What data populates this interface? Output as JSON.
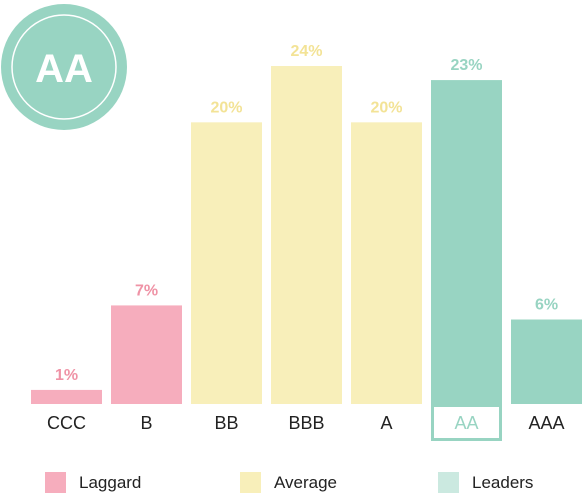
{
  "badge": {
    "text": "AA",
    "color": "#98d4c2"
  },
  "colors": {
    "laggard": "#f6adbd",
    "average": "#f8efba",
    "leaders": "#98d4c2",
    "laggard_text": "#ef93a6",
    "average_text": "#f3e396",
    "leaders_text": "#98d4c2",
    "legend_leaders": "#cbe9e0"
  },
  "chart_data": {
    "type": "bar",
    "categories": [
      "CCC",
      "B",
      "BB",
      "BBB",
      "A",
      "AA",
      "AAA"
    ],
    "values": [
      1,
      7,
      20,
      24,
      20,
      23,
      6
    ],
    "value_labels": [
      "1%",
      "7%",
      "20%",
      "24%",
      "20%",
      "23%",
      "6%"
    ],
    "groups": [
      "laggard",
      "laggard",
      "average",
      "average",
      "average",
      "leaders",
      "leaders"
    ],
    "highlighted_category": "AA",
    "ylim": [
      0,
      24
    ],
    "grid": false,
    "legend_position": "bottom",
    "legend": [
      {
        "key": "laggard",
        "label": "Laggard"
      },
      {
        "key": "average",
        "label": "Average"
      },
      {
        "key": "leaders",
        "label": "Leaders"
      }
    ]
  }
}
